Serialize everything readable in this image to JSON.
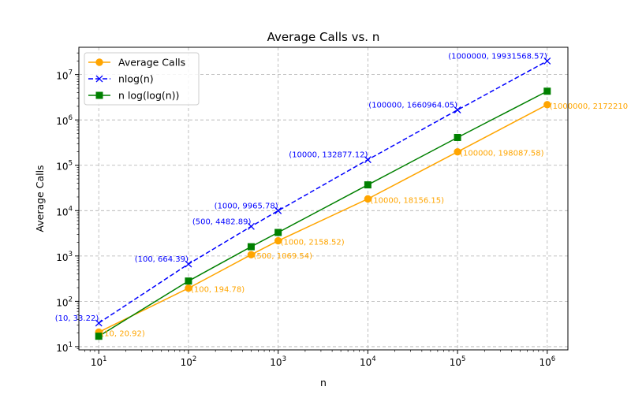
{
  "chart_data": {
    "type": "line",
    "title": "Average Calls vs. n",
    "xlabel": "n",
    "ylabel": "Average Calls",
    "xscale": "log",
    "yscale": "log",
    "xlim": [
      6,
      1700000
    ],
    "ylim": [
      8.5,
      40000000
    ],
    "xticks": [
      10,
      100,
      1000,
      10000,
      100000,
      1000000
    ],
    "xtick_labels": [
      {
        "base": "10",
        "exp": "1"
      },
      {
        "base": "10",
        "exp": "2"
      },
      {
        "base": "10",
        "exp": "3"
      },
      {
        "base": "10",
        "exp": "4"
      },
      {
        "base": "10",
        "exp": "5"
      },
      {
        "base": "10",
        "exp": "6"
      }
    ],
    "yticks": [
      10,
      100,
      1000,
      10000,
      100000,
      1000000,
      10000000
    ],
    "ytick_labels": [
      {
        "base": "10",
        "exp": "1"
      },
      {
        "base": "10",
        "exp": "2"
      },
      {
        "base": "10",
        "exp": "3"
      },
      {
        "base": "10",
        "exp": "4"
      },
      {
        "base": "10",
        "exp": "5"
      },
      {
        "base": "10",
        "exp": "6"
      },
      {
        "base": "10",
        "exp": "7"
      }
    ],
    "grid": true,
    "legend_position": "top-left",
    "series": [
      {
        "name": "Average Calls",
        "color": "#FFA500",
        "marker": "circle",
        "linestyle": "solid",
        "x": [
          10,
          100,
          500,
          1000,
          10000,
          100000,
          1000000
        ],
        "y": [
          20.92,
          194.78,
          1069.54,
          2158.52,
          18156.15,
          198087.58,
          2172210
        ],
        "annotations": [
          "(10, 20.92)",
          "(100, 194.78)",
          "(500, 1069.54)",
          "(1000, 2158.52)",
          "(10000, 18156.15)",
          "(100000, 198087.58)",
          "(1000000, 2172210"
        ]
      },
      {
        "name": "nlog(n)",
        "color": "#0000FF",
        "marker": "x",
        "linestyle": "dashed",
        "x": [
          10,
          100,
          500,
          1000,
          10000,
          100000,
          1000000
        ],
        "y": [
          33.22,
          664.39,
          4482.89,
          9965.78,
          132877.12,
          1660964.05,
          19931568.57
        ],
        "annotations": [
          "(10, 33.22)",
          "(100, 664.39)",
          "(500, 4482.89)",
          "(1000, 9965.78)",
          "(10000, 132877.12)",
          "(100000, 1660964.05)",
          "(1000000, 19931568.57)"
        ]
      },
      {
        "name": "n log(log(n))",
        "color": "#008000",
        "marker": "square",
        "linestyle": "solid",
        "x": [
          10,
          100,
          500,
          1000,
          10000,
          100000,
          1000000
        ],
        "y": [
          17,
          280,
          1600,
          3300,
          37000,
          410000,
          4300000
        ],
        "annotations": []
      }
    ]
  }
}
